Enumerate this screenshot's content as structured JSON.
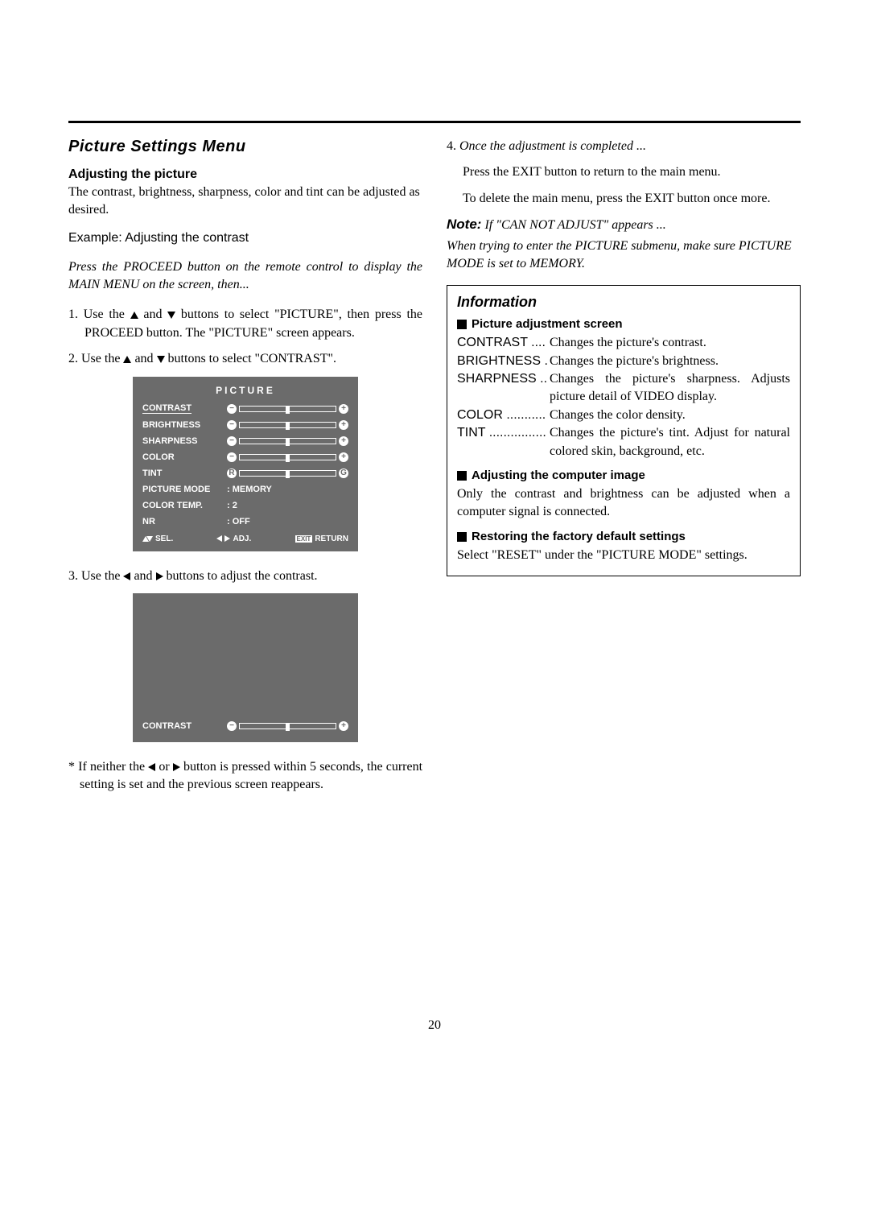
{
  "page_number": "20",
  "left": {
    "section_title": "Picture Settings Menu",
    "sub1": "Adjusting the picture",
    "intro": "The contrast, brightness, sharpness, color and tint can be adjusted as desired.",
    "example": "Example: Adjusting the contrast",
    "preface": "Press the PROCEED button on the remote control to display the MAIN MENU on the screen, then...",
    "step1_pre": "1. Use the ",
    "step1_mid": " and ",
    "step1_post": " buttons to select \"PICTURE\", then press the PROCEED button. The \"PICTURE\" screen appears.",
    "step2_pre": "2. Use the ",
    "step2_mid": " and ",
    "step2_post": " buttons to select \"CONTRAST\".",
    "step3_pre": "3. Use the ",
    "step3_mid": " and ",
    "step3_post": " buttons to adjust the contrast.",
    "footnote_pre": "* If neither the ",
    "footnote_mid": " or ",
    "footnote_post": " button is pressed within 5 seconds, the current setting is set and the previous screen reappears."
  },
  "osd": {
    "title": "PICTURE",
    "rows": [
      {
        "label": "CONTRAST",
        "type": "slider",
        "left": "−",
        "right": "+",
        "highlight": true
      },
      {
        "label": "BRIGHTNESS",
        "type": "slider",
        "left": "−",
        "right": "+"
      },
      {
        "label": "SHARPNESS",
        "type": "slider",
        "left": "−",
        "right": "+"
      },
      {
        "label": "COLOR",
        "type": "slider",
        "left": "−",
        "right": "+"
      },
      {
        "label": "TINT",
        "type": "slider",
        "left": "R",
        "right": "G"
      },
      {
        "label": "PICTURE MODE",
        "type": "value",
        "value": ": MEMORY"
      },
      {
        "label": "COLOR TEMP.",
        "type": "value",
        "value": ": 2"
      },
      {
        "label": "NR",
        "type": "value",
        "value": ": OFF"
      }
    ],
    "footer": {
      "sel": "SEL.",
      "adj": "ADJ.",
      "exit": "EXIT",
      "ret": "RETURN"
    },
    "contrast_only": "CONTRAST"
  },
  "right": {
    "step4_num": "4. ",
    "step4_title": "Once the adjustment is completed ...",
    "step4_a": "Press the EXIT button to return to the main menu.",
    "step4_b": "To delete the main menu, press the EXIT button once more.",
    "note_label": "Note:",
    "note_text1": " If \"CAN NOT ADJUST\" appears ...",
    "note_text2": "When trying to enter the PICTURE submenu, make sure PICTURE MODE is set to MEMORY.",
    "info_heading": "Information",
    "sub_adj": "Picture adjustment screen",
    "defs": [
      {
        "term": "CONTRAST ....",
        "desc": "Changes the picture's contrast."
      },
      {
        "term": "BRIGHTNESS .",
        "desc": "Changes the picture's brightness."
      },
      {
        "term": "SHARPNESS ..",
        "desc": "Changes the picture's sharpness. Adjusts picture detail of VIDEO display."
      },
      {
        "term": "COLOR ...........",
        "desc": "Changes the color density."
      },
      {
        "term": "TINT ................",
        "desc": "Changes the picture's tint. Adjust for natural colored skin, background, etc."
      }
    ],
    "sub_comp": "Adjusting the computer image",
    "comp_text": "Only the contrast and brightness can be adjusted when a computer signal is connected.",
    "sub_restore": "Restoring the factory default settings",
    "restore_text": "Select \"RESET\" under the \"PICTURE MODE\" settings."
  }
}
